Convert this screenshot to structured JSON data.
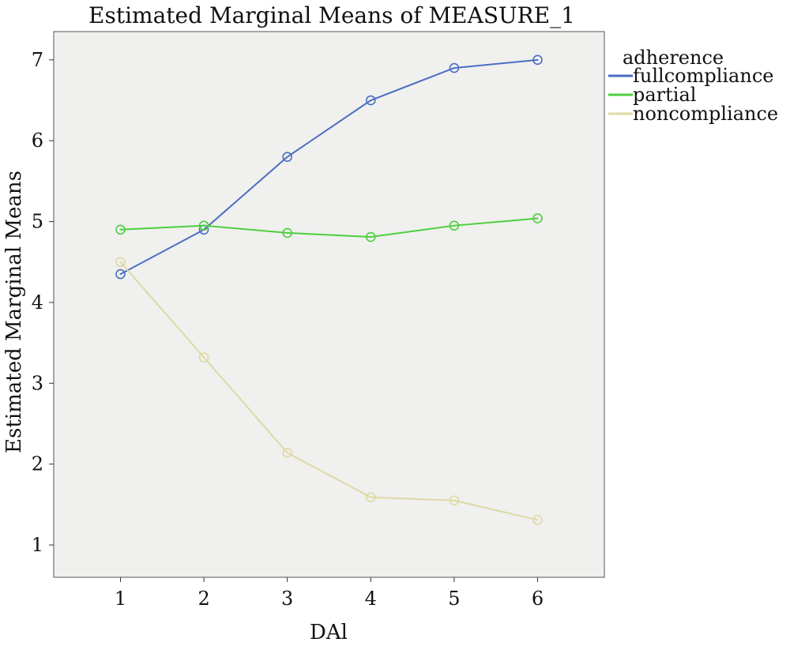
{
  "chart_data": {
    "type": "line",
    "title": "Estimated Marginal Means of MEASURE_1",
    "xlabel": "DAl",
    "ylabel": "Estimated Marginal Means",
    "x": [
      1,
      2,
      3,
      4,
      5,
      6
    ],
    "xlim": [
      0.2,
      6.8
    ],
    "ylim": [
      0.6,
      7.35
    ],
    "yticks": [
      1,
      2,
      3,
      4,
      5,
      6,
      7
    ],
    "grid": false,
    "legend_title": "adherence",
    "legend_position": "right",
    "background": "#f0f0ef",
    "series": [
      {
        "name": "fullcompliance",
        "color": "#4a6fc3",
        "values": [
          4.35,
          4.9,
          5.8,
          6.5,
          6.9,
          7.0
        ]
      },
      {
        "name": "partial",
        "color": "#4ccf3c",
        "values": [
          4.9,
          4.95,
          4.86,
          4.81,
          4.95,
          5.04
        ]
      },
      {
        "name": "noncompliance",
        "color": "#ddd9a4",
        "values": [
          4.5,
          3.32,
          2.14,
          1.59,
          1.55,
          1.31
        ]
      }
    ]
  }
}
